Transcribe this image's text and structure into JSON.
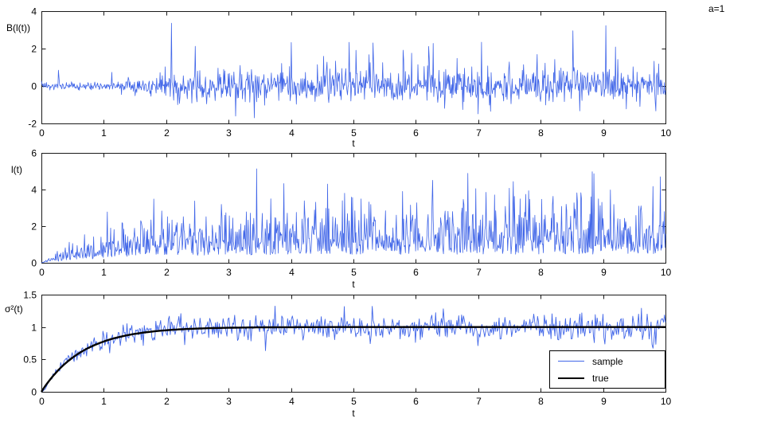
{
  "figure": {
    "annotation": "a=1",
    "background": "#ffffff",
    "axes_color": "#1a1a1a"
  },
  "chart_data": [
    {
      "type": "line",
      "title": "",
      "ylabel": "B(l(t))",
      "xlabel": "t",
      "xlim": [
        0,
        10
      ],
      "ylim": [
        -2,
        4
      ],
      "xticks": [
        0,
        1,
        2,
        3,
        4,
        5,
        6,
        7,
        8,
        9,
        10
      ],
      "xtick_labels": [
        "0",
        "1",
        "2",
        "3",
        "4",
        "5",
        "6",
        "7",
        "8",
        "9",
        "10"
      ],
      "yticks": [
        -2,
        0,
        2,
        4
      ],
      "ytick_labels": [
        "-2",
        "0",
        "2",
        "4"
      ],
      "grid": false,
      "legend": null,
      "series": [
        {
          "name": "series-blt-sample",
          "color": "#4166e8",
          "line_width": 0.8,
          "model": {
            "kind": "burst_noise",
            "seed": 7,
            "n": 1100,
            "t0": 1.1,
            "t1": 2.4,
            "s0": 0.1,
            "s1": 0.42,
            "spike_prob": 0.1,
            "spike_scale": 1.5,
            "clamp_min": -1.7,
            "clamp_max": 3.6
          }
        }
      ]
    },
    {
      "type": "line",
      "title": "",
      "ylabel": "l(t)",
      "xlabel": "t",
      "xlim": [
        0,
        10
      ],
      "ylim": [
        0,
        6
      ],
      "xticks": [
        0,
        1,
        2,
        3,
        4,
        5,
        6,
        7,
        8,
        9,
        10
      ],
      "xtick_labels": [
        "0",
        "1",
        "2",
        "3",
        "4",
        "5",
        "6",
        "7",
        "8",
        "9",
        "10"
      ],
      "yticks": [
        0,
        2,
        4,
        6
      ],
      "ytick_labels": [
        "0",
        "2",
        "4",
        "6"
      ],
      "grid": false,
      "legend": null,
      "series": [
        {
          "name": "series-lt-sample",
          "color": "#4166e8",
          "line_width": 0.8,
          "model": {
            "kind": "spiky_growth",
            "seed": 21,
            "n": 1100,
            "amp": 1.55,
            "rate": 0.75,
            "base": 0.3,
            "var": 0.8,
            "spike_prob": 0.045,
            "spike_base": 1.6,
            "spike_var": 1.1,
            "clamp_min": 0,
            "clamp_max": 5.8
          }
        }
      ]
    },
    {
      "type": "line",
      "title": "",
      "ylabel": "σ²(t)",
      "xlabel": "t",
      "xlim": [
        0,
        10
      ],
      "ylim": [
        0,
        1.5
      ],
      "xticks": [
        0,
        1,
        2,
        3,
        4,
        5,
        6,
        7,
        8,
        9,
        10
      ],
      "xtick_labels": [
        "0",
        "1",
        "2",
        "3",
        "4",
        "5",
        "6",
        "7",
        "8",
        "9",
        "10"
      ],
      "yticks": [
        0,
        0.5,
        1,
        1.5
      ],
      "ytick_labels": [
        "0",
        "0.5",
        "1",
        "1.5"
      ],
      "grid": false,
      "legend": {
        "position": "bottom-right",
        "entries": [
          {
            "label": "sample",
            "color": "#4166e8",
            "line_width": 1
          },
          {
            "label": "true",
            "color": "#000000",
            "line_width": 2.5
          }
        ]
      },
      "series": [
        {
          "name": "series-sigma-sample",
          "color": "#4166e8",
          "line_width": 0.9,
          "model": {
            "kind": "noisy_saturation",
            "seed": 5,
            "n": 650,
            "level": 1.0,
            "rate": 1.5,
            "noise0": 0.02,
            "noise1": 0.08,
            "clamp_min": 0,
            "clamp_max": 1.45
          }
        },
        {
          "name": "series-sigma-true",
          "color": "#000000",
          "line_width": 2.4,
          "model": {
            "kind": "saturation",
            "seed": 1,
            "n": 300,
            "level": 1.0,
            "rate": 1.5,
            "clamp_min": 0,
            "clamp_max": 1.5
          }
        }
      ]
    }
  ]
}
